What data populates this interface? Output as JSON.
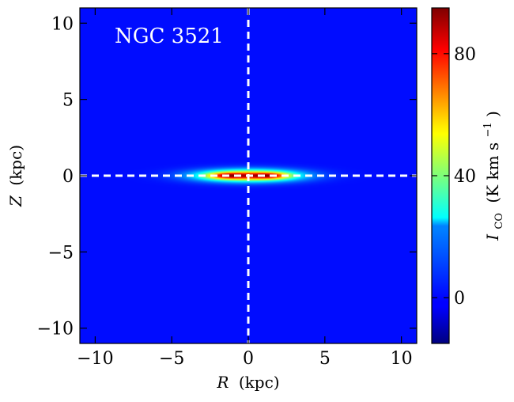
{
  "chart_data": {
    "type": "heatmap",
    "annotation": "NGC 3521",
    "xlabel": {
      "var": "R",
      "unit": "(kpc)"
    },
    "ylabel": {
      "var": "Z",
      "unit": "(kpc)"
    },
    "xlim": [
      -11,
      11
    ],
    "ylim": [
      -11,
      11
    ],
    "xticks": [
      -10,
      -5,
      0,
      5,
      10
    ],
    "yticks": [
      -10,
      -5,
      0,
      5,
      10
    ],
    "xtick_labels": [
      "−10",
      "−5",
      "0",
      "5",
      "10"
    ],
    "ytick_labels": [
      "−10",
      "−5",
      "0",
      "5",
      "10"
    ],
    "colorbar": {
      "label_main": "I",
      "label_sub": "CO",
      "label_unit": "(K km s",
      "label_exp": "−1",
      "label_close": ")",
      "vmin": -15,
      "vmax": 95,
      "ticks": [
        0,
        40,
        80
      ],
      "tick_labels": [
        "0",
        "40",
        "80"
      ],
      "colormap": "jet"
    },
    "field": {
      "background_value": 0,
      "components": [
        {
          "r0": 0,
          "z0": 0,
          "sigma_r": 2.3,
          "sigma_z": 0.28,
          "amplitude": 70
        },
        {
          "r0": -1.4,
          "z0": 0,
          "sigma_r": 0.9,
          "sigma_z": 0.15,
          "amplitude": 35
        },
        {
          "r0": 1.4,
          "z0": 0,
          "sigma_r": 0.9,
          "sigma_z": 0.15,
          "amplitude": 35
        }
      ]
    },
    "reference_lines": [
      {
        "orientation": "vertical",
        "value": 0,
        "style": "dashed",
        "color": "#ffffff"
      },
      {
        "orientation": "horizontal",
        "value": 0,
        "style": "dashed",
        "color": "#ffffff"
      }
    ]
  }
}
